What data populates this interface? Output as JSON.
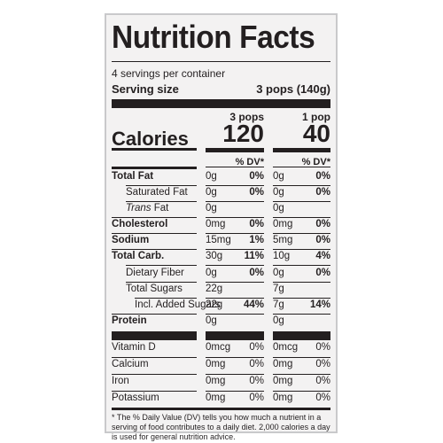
{
  "label": {
    "title": "Nutrition Facts",
    "servings_per_container": "4 servings per container",
    "serving_size_label": "Serving size",
    "serving_size_value": "3 pops (140g)",
    "col1_header": "3 pops",
    "col2_header": "1 pop",
    "calories_label": "Calories",
    "calories_col1": "120",
    "calories_col2": "40",
    "dv_header": "% DV*",
    "nutrients": [
      {
        "name": "Total Fat",
        "amt1": "0g",
        "dv1": "0%",
        "amt2": "0g",
        "dv2": "0%"
      },
      {
        "name": "Saturated Fat",
        "amt1": "0g",
        "dv1": "0%",
        "amt2": "0g",
        "dv2": "0%"
      },
      {
        "name_prefix": "Trans",
        "name": " Fat",
        "amt1": "0g",
        "dv1": "",
        "amt2": "0g",
        "dv2": ""
      },
      {
        "name": "Cholesterol",
        "amt1": "0mg",
        "dv1": "0%",
        "amt2": "0mg",
        "dv2": "0%"
      },
      {
        "name": "Sodium",
        "amt1": "15mg",
        "dv1": "1%",
        "amt2": "5mg",
        "dv2": "0%"
      },
      {
        "name": "Total Carb.",
        "amt1": "30g",
        "dv1": "11%",
        "amt2": "10g",
        "dv2": "4%"
      },
      {
        "name": "Dietary Fiber",
        "amt1": "0g",
        "dv1": "0%",
        "amt2": "0g",
        "dv2": "0%"
      },
      {
        "name": "Total Sugars",
        "amt1": "22g",
        "dv1": "",
        "amt2": "7g",
        "dv2": ""
      },
      {
        "name": "Incl. Added Sugars",
        "amt1": "22g",
        "dv1": "44%",
        "amt2": "7g",
        "dv2": "14%"
      },
      {
        "name": "Protein",
        "amt1": "0g",
        "dv1": "",
        "amt2": "0g",
        "dv2": ""
      }
    ],
    "vitamins": [
      {
        "name": "Vitamin D",
        "amt1": "0mcg",
        "dv1": "0%",
        "amt2": "0mcg",
        "dv2": "0%"
      },
      {
        "name": "Calcium",
        "amt1": "0mg",
        "dv1": "0%",
        "amt2": "0mg",
        "dv2": "0%"
      },
      {
        "name": "Iron",
        "amt1": "0mg",
        "dv1": "0%",
        "amt2": "0mg",
        "dv2": "0%"
      },
      {
        "name": "Potassium",
        "amt1": "0mg",
        "dv1": "0%",
        "amt2": "0mg",
        "dv2": "0%"
      }
    ],
    "footnote": "* The % Daily Value (DV) tells you how much a nutrient in a serving of food contributes to a daily diet. 2,000 calories a day is used for general nutrition advice."
  },
  "colors": {
    "ink": "#231f20",
    "panel": "#f3f2f2",
    "border": "#c9c9cb"
  }
}
